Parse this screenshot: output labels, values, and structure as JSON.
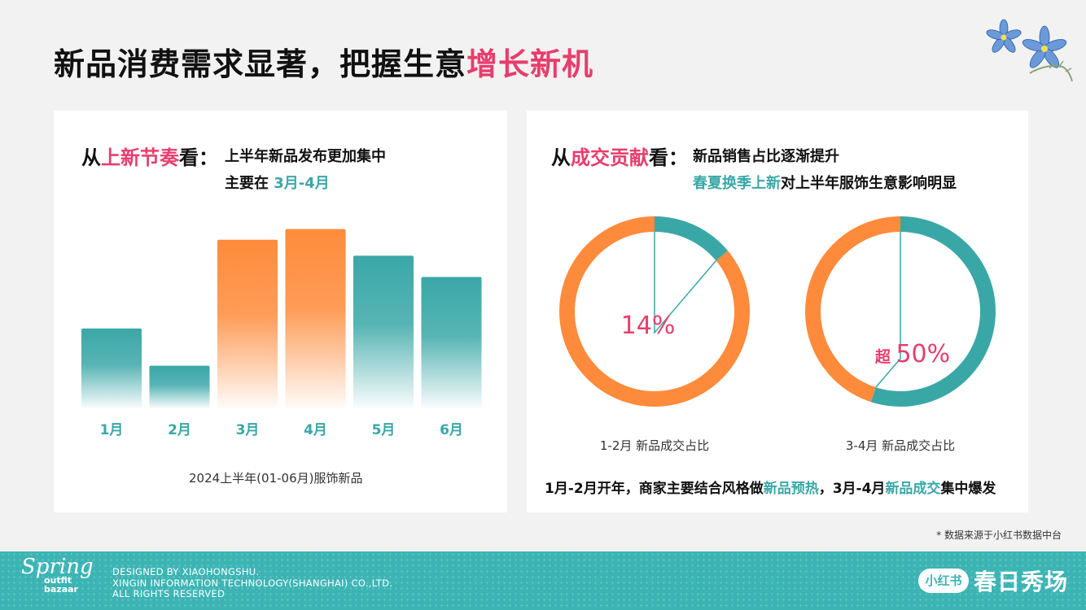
{
  "title": {
    "main": "新品消费需求显著，把握生意",
    "highlight": "增长新机"
  },
  "left_panel": {
    "heading_prefix": "从",
    "heading_highlight": "上新节奏",
    "heading_suffix": "看：",
    "line1": "上半年新品发布更加集中",
    "line2_prefix": "主要在 ",
    "line2_highlight": "3月-4月",
    "caption": "2024上半年(01-06月)服饰新品"
  },
  "right_panel": {
    "heading_prefix": "从",
    "heading_highlight": "成交贡献",
    "heading_suffix": "看：",
    "line1": "新品销售占比逐渐提升",
    "line2_highlight": "春夏换季上新",
    "line2_suffix": "对上半年服饰生意影响明显",
    "bottom_note": {
      "p1": "1月-2月开年，商家主要结合风格做",
      "h1": "新品预热",
      "p2": "，3月-4月",
      "h2": "新品成交",
      "p3": "集中爆发"
    }
  },
  "chart_data": [
    {
      "type": "bar",
      "categories": [
        "1月",
        "2月",
        "3月",
        "4月",
        "5月",
        "6月"
      ],
      "values": [
        45,
        24,
        95,
        101,
        86,
        74
      ],
      "highlight_categories": [
        "3月",
        "4月"
      ],
      "ylim": [
        0,
        110
      ],
      "title": "",
      "xlabel": "",
      "ylabel": "",
      "colors": {
        "normal": "#3aa7a7",
        "highlight": "#fe8b3b"
      }
    },
    {
      "type": "pie",
      "label": "1-2月 新品成交占比",
      "value_label": "14%",
      "slices": [
        {
          "name": "",
          "value": 14,
          "color": "#3aa7a7"
        },
        {
          "name": "",
          "value": 86,
          "color": "#fe8b3b"
        }
      ]
    },
    {
      "type": "pie",
      "label": "3-4月 新品成交占比",
      "value_prefix": "超",
      "value_label": "50%",
      "slices": [
        {
          "name": "",
          "value": 55,
          "color": "#3aa7a7"
        },
        {
          "name": "",
          "value": 45,
          "color": "#fe8b3b"
        }
      ]
    }
  ],
  "source_note": "* 数据来源于小红书数据中台",
  "footer": {
    "logo_word": "Spring",
    "logo_line1": "outfit",
    "logo_line2": "bazaar",
    "credit1": "DESIGNED BY XIAOHONGSHU.",
    "credit2": "XINGIN INFORMATION TECHNOLOGY(SHANGHAI) CO.,LTD.",
    "credit3": "ALL RIGHTS RESERVED",
    "brand_badge": "小红书",
    "brand_name": "春日秀场"
  },
  "colors": {
    "accent_pink": "#e63e6d",
    "teal": "#3aa7a7",
    "orange": "#fe8b3b",
    "footer": "#3cb4b4"
  }
}
